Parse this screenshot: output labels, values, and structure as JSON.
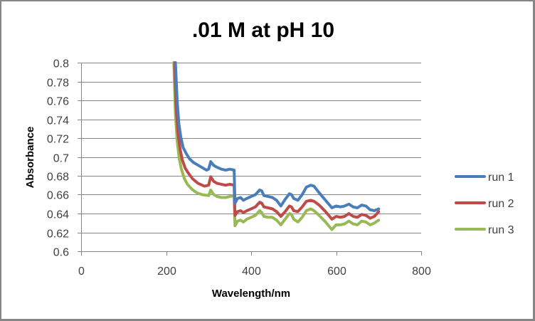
{
  "chart_data": {
    "type": "line",
    "title": ".01 M at pH 10",
    "xlabel": "Wavelength/nm",
    "ylabel": "Absorbance",
    "xlim": [
      0,
      800
    ],
    "ylim": [
      0.6,
      0.8
    ],
    "xticks": [
      0,
      200,
      400,
      600,
      800
    ],
    "xtick_labels": [
      "0",
      "200",
      "400",
      "600",
      "800"
    ],
    "yticks": [
      0.6,
      0.62,
      0.64,
      0.66,
      0.68,
      0.7,
      0.72,
      0.74,
      0.76,
      0.78,
      0.8
    ],
    "ytick_labels": [
      "0.6",
      "0.62",
      "0.64",
      "0.66",
      "0.68",
      "0.7",
      "0.72",
      "0.74",
      "0.76",
      "0.78",
      "0.8"
    ],
    "grid": "horizontal",
    "legend_position": "right",
    "series": [
      {
        "name": "run 1",
        "color": "#4a7ebb",
        "x": [
          222,
          226,
          230,
          235,
          240,
          248,
          255,
          265,
          280,
          295,
          300,
          305,
          312,
          320,
          330,
          340,
          350,
          360,
          362,
          368,
          375,
          382,
          390,
          400,
          410,
          420,
          425,
          430,
          440,
          450,
          460,
          470,
          480,
          490,
          495,
          500,
          510,
          520,
          530,
          540,
          548,
          560,
          575,
          590,
          600,
          610,
          620,
          630,
          640,
          650,
          660,
          670,
          680,
          690,
          700
        ],
        "values": [
          0.8,
          0.76,
          0.735,
          0.72,
          0.71,
          0.703,
          0.698,
          0.694,
          0.69,
          0.686,
          0.687,
          0.695,
          0.691,
          0.689,
          0.687,
          0.686,
          0.687,
          0.686,
          0.651,
          0.656,
          0.657,
          0.654,
          0.656,
          0.658,
          0.66,
          0.665,
          0.664,
          0.659,
          0.658,
          0.657,
          0.654,
          0.648,
          0.655,
          0.661,
          0.66,
          0.656,
          0.654,
          0.66,
          0.668,
          0.67,
          0.669,
          0.662,
          0.654,
          0.646,
          0.648,
          0.647,
          0.648,
          0.65,
          0.647,
          0.646,
          0.649,
          0.648,
          0.644,
          0.643,
          0.645
        ]
      },
      {
        "name": "run 2",
        "color": "#be4b48",
        "x": [
          220,
          224,
          228,
          233,
          238,
          245,
          252,
          262,
          275,
          290,
          300,
          305,
          312,
          320,
          330,
          340,
          350,
          360,
          362,
          368,
          375,
          382,
          390,
          400,
          410,
          420,
          425,
          430,
          440,
          450,
          460,
          470,
          480,
          490,
          495,
          500,
          510,
          520,
          530,
          540,
          548,
          560,
          575,
          590,
          600,
          610,
          620,
          630,
          640,
          650,
          660,
          670,
          680,
          690,
          700
        ],
        "values": [
          0.8,
          0.75,
          0.725,
          0.708,
          0.697,
          0.688,
          0.683,
          0.677,
          0.672,
          0.669,
          0.67,
          0.679,
          0.674,
          0.672,
          0.671,
          0.67,
          0.671,
          0.67,
          0.638,
          0.642,
          0.643,
          0.641,
          0.643,
          0.645,
          0.647,
          0.652,
          0.651,
          0.647,
          0.646,
          0.645,
          0.642,
          0.637,
          0.642,
          0.648,
          0.647,
          0.643,
          0.642,
          0.647,
          0.653,
          0.654,
          0.653,
          0.649,
          0.642,
          0.634,
          0.637,
          0.636,
          0.637,
          0.64,
          0.637,
          0.636,
          0.639,
          0.638,
          0.635,
          0.637,
          0.642
        ]
      },
      {
        "name": "run 3",
        "color": "#98b954",
        "x": [
          218,
          222,
          226,
          231,
          236,
          243,
          250,
          260,
          272,
          285,
          300,
          305,
          312,
          320,
          330,
          340,
          350,
          360,
          362,
          368,
          375,
          382,
          390,
          400,
          410,
          420,
          425,
          430,
          440,
          450,
          460,
          470,
          480,
          490,
          495,
          500,
          510,
          520,
          530,
          540,
          548,
          560,
          575,
          590,
          600,
          610,
          620,
          630,
          640,
          650,
          660,
          670,
          680,
          690,
          700
        ],
        "values": [
          0.8,
          0.745,
          0.717,
          0.698,
          0.687,
          0.677,
          0.671,
          0.666,
          0.662,
          0.66,
          0.659,
          0.665,
          0.66,
          0.658,
          0.657,
          0.657,
          0.658,
          0.659,
          0.627,
          0.632,
          0.633,
          0.631,
          0.634,
          0.636,
          0.638,
          0.643,
          0.641,
          0.637,
          0.636,
          0.636,
          0.633,
          0.628,
          0.634,
          0.64,
          0.639,
          0.634,
          0.631,
          0.636,
          0.643,
          0.645,
          0.643,
          0.638,
          0.631,
          0.623,
          0.628,
          0.628,
          0.629,
          0.632,
          0.629,
          0.628,
          0.632,
          0.631,
          0.628,
          0.63,
          0.633
        ]
      }
    ]
  }
}
